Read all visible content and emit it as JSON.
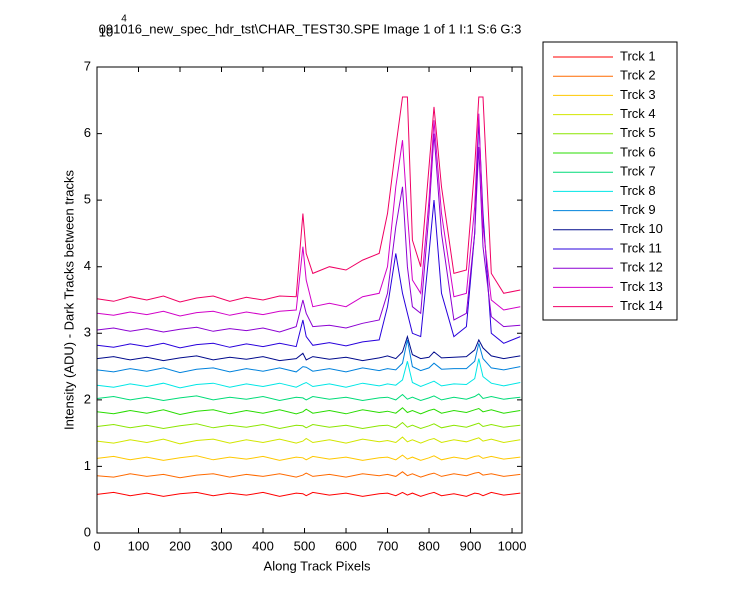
{
  "chart_data": {
    "type": "line",
    "title": "091016_new_spec_hdr_tst\\CHAR_TEST30.SPE  Image 1 of 1  I:1  S:6  G:3",
    "x_label": "Along Track Pixels",
    "y_label": "Intensity (ADU) - Dark Tracks between tracks",
    "y_multiplier": "10",
    "y_multiplier_exponent": "4",
    "xlim": [
      0,
      1024
    ],
    "xticks": [
      0,
      100,
      200,
      300,
      400,
      500,
      600,
      700,
      800,
      900,
      1000
    ],
    "ylim": [
      0,
      7
    ],
    "yticks": [
      0,
      1,
      2,
      3,
      4,
      5,
      6,
      7
    ],
    "legend": "outside-right",
    "x": [
      0,
      40,
      80,
      120,
      160,
      200,
      240,
      280,
      320,
      360,
      400,
      440,
      480,
      496,
      504,
      520,
      560,
      600,
      640,
      680,
      700,
      720,
      736,
      748,
      760,
      780,
      800,
      812,
      830,
      860,
      890,
      910,
      920,
      930,
      950,
      980,
      1020
    ],
    "series": [
      {
        "name": "Trck 1",
        "color": "#ff0000",
        "values": [
          0.58,
          0.61,
          0.56,
          0.6,
          0.55,
          0.59,
          0.61,
          0.56,
          0.6,
          0.57,
          0.61,
          0.55,
          0.6,
          0.59,
          0.56,
          0.61,
          0.57,
          0.6,
          0.55,
          0.59,
          0.6,
          0.56,
          0.61,
          0.57,
          0.6,
          0.55,
          0.59,
          0.61,
          0.56,
          0.59,
          0.55,
          0.6,
          0.59,
          0.56,
          0.61,
          0.57,
          0.6
        ]
      },
      {
        "name": "Trck 2",
        "color": "#ff6a00",
        "values": [
          0.86,
          0.84,
          0.89,
          0.85,
          0.88,
          0.83,
          0.87,
          0.89,
          0.84,
          0.88,
          0.85,
          0.89,
          0.84,
          0.87,
          0.9,
          0.85,
          0.88,
          0.84,
          0.89,
          0.86,
          0.88,
          0.85,
          0.92,
          0.86,
          0.89,
          0.84,
          0.88,
          0.9,
          0.85,
          0.89,
          0.86,
          0.9,
          0.91,
          0.87,
          0.89,
          0.85,
          0.88
        ]
      },
      {
        "name": "Trck 3",
        "color": "#ffc800",
        "values": [
          1.12,
          1.15,
          1.1,
          1.14,
          1.09,
          1.13,
          1.16,
          1.1,
          1.14,
          1.11,
          1.15,
          1.09,
          1.14,
          1.13,
          1.1,
          1.15,
          1.11,
          1.14,
          1.09,
          1.13,
          1.14,
          1.1,
          1.17,
          1.11,
          1.14,
          1.09,
          1.13,
          1.16,
          1.1,
          1.14,
          1.11,
          1.15,
          1.16,
          1.12,
          1.15,
          1.11,
          1.14
        ]
      },
      {
        "name": "Trck 4",
        "color": "#d2e600",
        "values": [
          1.38,
          1.35,
          1.4,
          1.36,
          1.41,
          1.34,
          1.39,
          1.41,
          1.35,
          1.4,
          1.36,
          1.41,
          1.35,
          1.38,
          1.42,
          1.36,
          1.4,
          1.35,
          1.41,
          1.37,
          1.39,
          1.36,
          1.44,
          1.37,
          1.4,
          1.35,
          1.4,
          1.42,
          1.36,
          1.4,
          1.37,
          1.41,
          1.43,
          1.38,
          1.41,
          1.36,
          1.4
        ]
      },
      {
        "name": "Trck 5",
        "color": "#8ce600",
        "values": [
          1.6,
          1.63,
          1.58,
          1.62,
          1.57,
          1.61,
          1.64,
          1.58,
          1.62,
          1.59,
          1.63,
          1.57,
          1.62,
          1.61,
          1.58,
          1.63,
          1.59,
          1.62,
          1.57,
          1.61,
          1.62,
          1.58,
          1.66,
          1.59,
          1.62,
          1.57,
          1.61,
          1.64,
          1.58,
          1.62,
          1.59,
          1.63,
          1.65,
          1.6,
          1.63,
          1.59,
          1.62
        ]
      },
      {
        "name": "Trck 6",
        "color": "#28dc00",
        "values": [
          1.82,
          1.79,
          1.84,
          1.8,
          1.85,
          1.78,
          1.83,
          1.85,
          1.79,
          1.84,
          1.8,
          1.85,
          1.79,
          1.82,
          1.86,
          1.8,
          1.84,
          1.79,
          1.85,
          1.81,
          1.83,
          1.8,
          1.88,
          1.81,
          1.84,
          1.79,
          1.84,
          1.86,
          1.8,
          1.84,
          1.81,
          1.85,
          1.87,
          1.82,
          1.85,
          1.8,
          1.84
        ]
      },
      {
        "name": "Trck 7",
        "color": "#00dc78",
        "values": [
          2.02,
          2.05,
          2.0,
          2.04,
          1.99,
          2.03,
          2.06,
          2.0,
          2.04,
          2.01,
          2.05,
          1.99,
          2.04,
          2.03,
          2.0,
          2.05,
          2.01,
          2.04,
          1.99,
          2.03,
          2.04,
          2.0,
          2.08,
          2.01,
          2.04,
          1.99,
          2.03,
          2.06,
          2.0,
          2.04,
          2.01,
          2.05,
          2.09,
          2.02,
          2.05,
          2.01,
          2.04
        ]
      },
      {
        "name": "Trck 8",
        "color": "#00e6e6",
        "values": [
          2.22,
          2.19,
          2.24,
          2.2,
          2.25,
          2.18,
          2.23,
          2.25,
          2.19,
          2.24,
          2.2,
          2.25,
          2.19,
          2.24,
          2.26,
          2.2,
          2.24,
          2.19,
          2.25,
          2.21,
          2.24,
          2.22,
          2.3,
          2.58,
          2.26,
          2.2,
          2.25,
          2.28,
          2.21,
          2.24,
          2.23,
          2.32,
          2.62,
          2.35,
          2.25,
          2.21,
          2.26
        ]
      },
      {
        "name": "Trck 9",
        "color": "#0082dc",
        "values": [
          2.45,
          2.42,
          2.47,
          2.43,
          2.48,
          2.41,
          2.46,
          2.48,
          2.42,
          2.47,
          2.43,
          2.48,
          2.42,
          2.5,
          2.49,
          2.43,
          2.47,
          2.42,
          2.48,
          2.44,
          2.47,
          2.45,
          2.55,
          2.9,
          2.5,
          2.44,
          2.48,
          2.55,
          2.46,
          2.47,
          2.47,
          2.58,
          2.85,
          2.62,
          2.48,
          2.45,
          2.5
        ]
      },
      {
        "name": "Trck 10",
        "color": "#000a8c",
        "values": [
          2.62,
          2.65,
          2.6,
          2.64,
          2.59,
          2.63,
          2.66,
          2.6,
          2.64,
          2.61,
          2.65,
          2.59,
          2.62,
          2.7,
          2.6,
          2.65,
          2.61,
          2.64,
          2.59,
          2.63,
          2.66,
          2.62,
          2.72,
          2.95,
          2.68,
          2.62,
          2.64,
          2.72,
          2.63,
          2.64,
          2.65,
          2.75,
          2.9,
          2.78,
          2.66,
          2.62,
          2.66
        ]
      },
      {
        "name": "Trck 11",
        "color": "#2800dc",
        "values": [
          2.82,
          2.79,
          2.84,
          2.8,
          2.85,
          2.78,
          2.83,
          2.85,
          2.79,
          2.84,
          2.8,
          2.85,
          2.8,
          3.2,
          2.95,
          2.82,
          2.86,
          2.81,
          2.87,
          2.9,
          3.4,
          4.2,
          3.6,
          3.3,
          3.0,
          2.95,
          4.2,
          5.0,
          3.6,
          2.95,
          3.1,
          4.5,
          6.2,
          4.8,
          3.0,
          2.85,
          2.95
        ]
      },
      {
        "name": "Trck 12",
        "color": "#8c00d2",
        "values": [
          3.05,
          3.08,
          3.03,
          3.07,
          3.02,
          3.06,
          3.09,
          3.03,
          3.07,
          3.04,
          3.08,
          3.02,
          3.1,
          3.5,
          3.3,
          3.1,
          3.12,
          3.08,
          3.15,
          3.2,
          3.6,
          4.6,
          5.2,
          4.0,
          3.4,
          3.3,
          4.8,
          6.0,
          4.5,
          3.2,
          3.3,
          4.5,
          5.8,
          4.3,
          3.25,
          3.1,
          3.12
        ]
      },
      {
        "name": "Trck 13",
        "color": "#d200c8",
        "values": [
          3.3,
          3.27,
          3.32,
          3.28,
          3.33,
          3.26,
          3.31,
          3.33,
          3.27,
          3.32,
          3.28,
          3.33,
          3.35,
          4.3,
          3.8,
          3.4,
          3.45,
          3.4,
          3.55,
          3.6,
          4.0,
          5.2,
          5.9,
          4.8,
          3.8,
          3.6,
          5.0,
          6.2,
          4.8,
          3.55,
          3.6,
          4.9,
          6.3,
          4.6,
          3.5,
          3.35,
          3.4
        ]
      },
      {
        "name": "Trck 14",
        "color": "#f00064",
        "values": [
          3.52,
          3.48,
          3.55,
          3.5,
          3.56,
          3.47,
          3.53,
          3.56,
          3.48,
          3.54,
          3.5,
          3.56,
          3.55,
          4.8,
          4.2,
          3.9,
          4.0,
          3.95,
          4.1,
          4.2,
          4.8,
          5.8,
          6.55,
          6.55,
          4.4,
          4.0,
          5.5,
          6.4,
          5.2,
          3.9,
          3.95,
          5.5,
          6.55,
          6.55,
          3.9,
          3.6,
          3.65
        ]
      }
    ]
  }
}
